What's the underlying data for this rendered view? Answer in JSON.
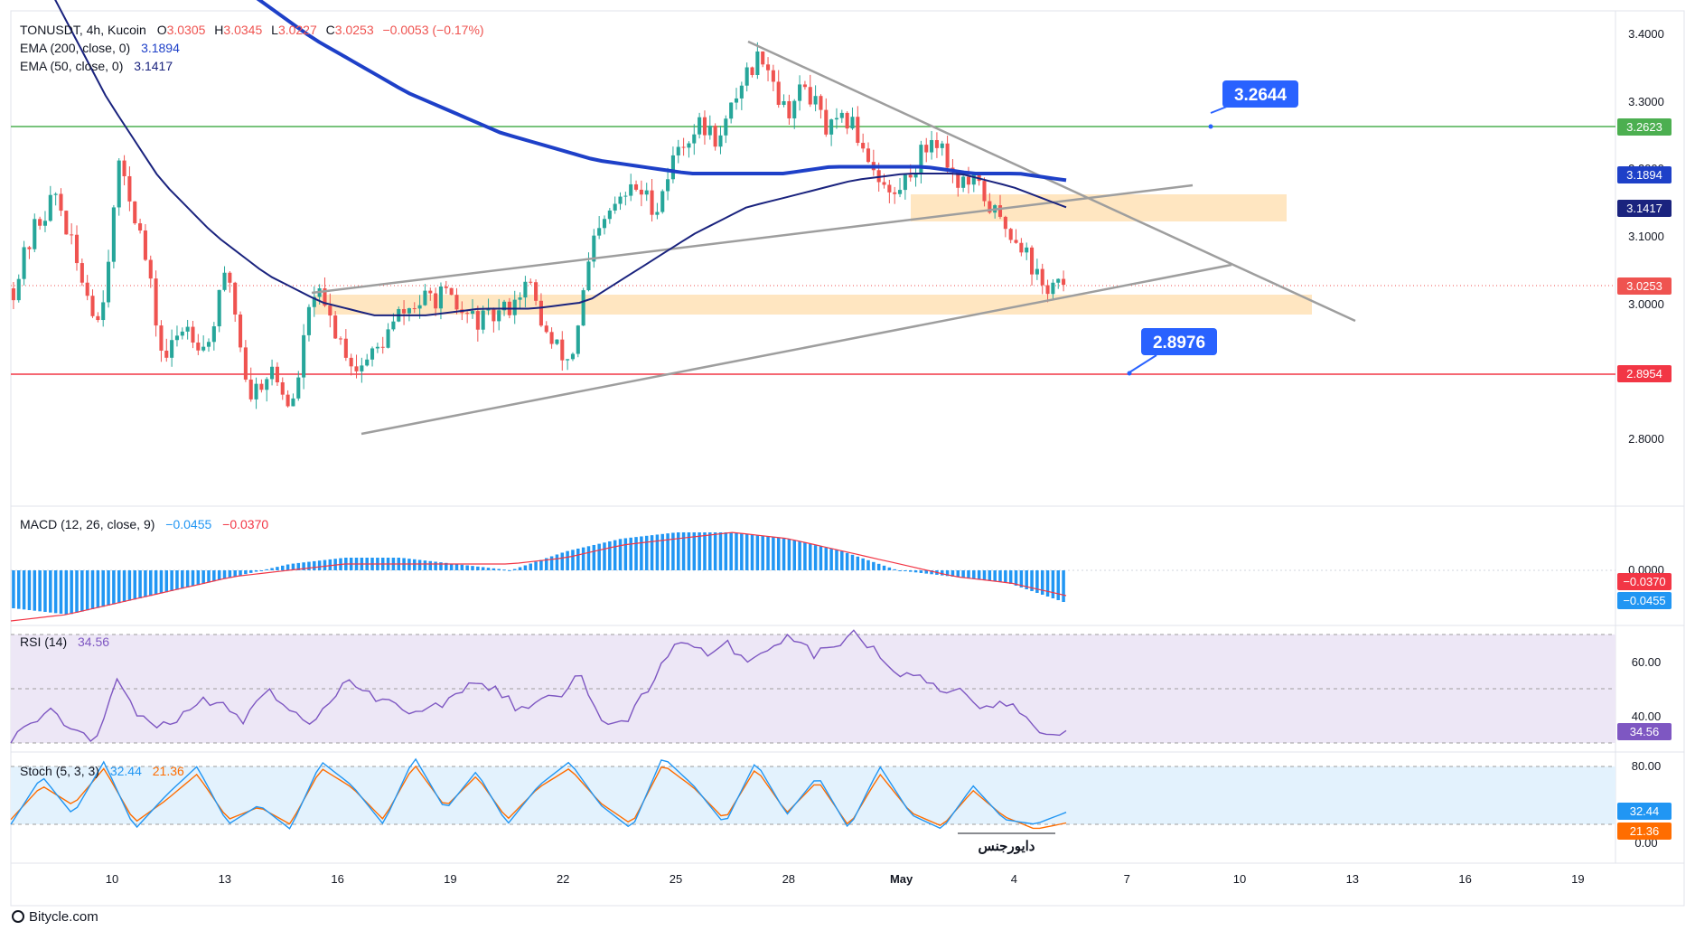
{
  "header": {
    "symbol_line": "TONUSDT, 4h, Kucoin",
    "ohlc": {
      "o_label": "O",
      "o": "3.0305",
      "h_label": "H",
      "h": "3.0345",
      "l_label": "L",
      "l": "3.0227",
      "c_label": "C",
      "c": "3.0253",
      "change": "−0.0053 (−0.17%)"
    },
    "ema200_label": "EMA (200, close, 0)",
    "ema200_value": "3.1894",
    "ema50_label": "EMA (50, close, 0)",
    "ema50_value": "3.1417"
  },
  "callouts": {
    "upper": "3.2644",
    "lower": "2.8976"
  },
  "price_axis": {
    "ticks": [
      "3.4000",
      "3.3000",
      "3.2000",
      "3.1000",
      "3.0000",
      "2.8000"
    ],
    "tags": {
      "resistance": "3.2623",
      "ema200": "3.1894",
      "ema50": "3.1417",
      "last": "3.0253",
      "support": "2.8954"
    }
  },
  "macd": {
    "label": "MACD (12, 26, close, 9)",
    "macd_value": "−0.0455",
    "signal_value": "−0.0370",
    "zero_tick": "0.0000",
    "tag_signal": "−0.0370",
    "tag_macd": "−0.0455"
  },
  "rsi": {
    "label": "RSI (14)",
    "value": "34.56",
    "ticks": [
      "60.00",
      "40.00"
    ],
    "tag": "34.56"
  },
  "stoch": {
    "label": "Stoch (5, 3, 3)",
    "k_value": "32.44",
    "d_value": "21.36",
    "ticks": [
      "80.00",
      "0.00"
    ],
    "tag_k": "32.44",
    "tag_d": "21.36",
    "annotation": "دایورجنس"
  },
  "time_axis": {
    "labels": [
      "10",
      "13",
      "16",
      "19",
      "22",
      "25",
      "28",
      "May",
      "4",
      "7",
      "10",
      "13",
      "16",
      "19"
    ]
  },
  "watermark": "Bitycle.com",
  "colors": {
    "up": "#26a69a",
    "down": "#ef5350",
    "ema200": "#1e40c8",
    "ema50": "#1a237e",
    "resistance": "#4caf50",
    "support": "#f23645",
    "callout": "#2962ff",
    "zone": "#ffe0b2",
    "trendline": "#9e9e9e",
    "rsi_line": "#7e57c2",
    "rsi_band": "#ede7f6",
    "stoch_k": "#2196f3",
    "stoch_d": "#ff6d00",
    "stoch_band": "#e3f2fd",
    "macd_hist": "#2196f3",
    "macd_signal": "#f23645"
  },
  "chart_data": [
    {
      "type": "candlestick",
      "ylim": [
        2.73,
        3.43
      ],
      "x_labels": [
        "10",
        "13",
        "16",
        "19",
        "22",
        "25",
        "28",
        "May",
        "4",
        "7",
        "10",
        "13",
        "16",
        "19"
      ],
      "close_path": [
        3.02,
        3.11,
        3.16,
        3.05,
        2.97,
        3.21,
        3.09,
        2.91,
        2.97,
        2.93,
        3.05,
        2.86,
        2.9,
        2.84,
        3.02,
        2.96,
        2.9,
        2.93,
        2.98,
        3.0,
        3.01,
        2.98,
        2.97,
        2.99,
        3.03,
        2.94,
        2.91,
        3.08,
        3.14,
        3.17,
        3.14,
        3.23,
        3.26,
        3.24,
        3.33,
        3.37,
        3.28,
        3.32,
        3.25,
        3.27,
        3.21,
        3.15,
        3.2,
        3.25,
        3.18,
        3.17,
        3.12,
        3.09,
        3.02,
        3.03
      ],
      "resistance": 3.2623,
      "support": 2.8954,
      "last_price": 3.0253,
      "ema200_path": [
        3.55,
        3.49,
        3.44,
        3.39,
        3.35,
        3.31,
        3.28,
        3.25,
        3.23,
        3.21,
        3.2,
        3.19,
        3.19,
        3.19,
        3.2,
        3.2,
        3.2,
        3.19,
        3.19,
        3.18
      ],
      "ema50_path": [
        3.45,
        3.3,
        3.18,
        3.1,
        3.04,
        3.0,
        2.98,
        2.98,
        2.99,
        2.99,
        3.0,
        3.05,
        3.1,
        3.14,
        3.16,
        3.18,
        3.19,
        3.19,
        3.17,
        3.14
      ],
      "zones": [
        [
          3.12,
          3.16
        ],
        [
          2.99,
          3.02
        ]
      ],
      "callouts": [
        3.2644,
        2.8976
      ]
    },
    {
      "type": "bar",
      "name": "MACD (12, 26, close, 9)",
      "histogram_path": [
        -0.06,
        -0.07,
        -0.05,
        -0.03,
        -0.01,
        0.01,
        0.02,
        0.02,
        0.01,
        0.0,
        0.03,
        0.05,
        0.06,
        0.06,
        0.05,
        0.03,
        0.0,
        -0.01,
        -0.02,
        -0.05
      ],
      "signal_path": [
        -0.08,
        -0.07,
        -0.05,
        -0.03,
        -0.01,
        0.0,
        0.01,
        0.01,
        0.01,
        0.01,
        0.02,
        0.04,
        0.05,
        0.06,
        0.05,
        0.03,
        0.01,
        -0.01,
        -0.02,
        -0.04
      ],
      "last_macd": -0.0455,
      "last_signal": -0.037
    },
    {
      "type": "line",
      "name": "RSI (14)",
      "ylim": [
        20,
        75
      ],
      "bands": [
        30,
        50,
        70
      ],
      "values": [
        30,
        38,
        42,
        35,
        30,
        52,
        40,
        36,
        40,
        45,
        44,
        37,
        50,
        43,
        38,
        42,
        55,
        48,
        45,
        40,
        44,
        46,
        52,
        49,
        43,
        45,
        47,
        55,
        40,
        36,
        48,
        62,
        68,
        62,
        66,
        60,
        67,
        70,
        63,
        66,
        71,
        63,
        55,
        57,
        49,
        50,
        43,
        46,
        40,
        32,
        34.56
      ],
      "last": 34.56
    },
    {
      "type": "line",
      "name": "Stoch (5, 3, 3)",
      "ylim": [
        -5,
        95
      ],
      "bands": [
        20,
        80
      ],
      "series": [
        {
          "values": [
            20,
            70,
            30,
            85,
            15,
            50,
            80,
            20,
            40,
            15,
            85,
            60,
            20,
            90,
            35,
            75,
            20,
            60,
            85,
            40,
            15,
            90,
            60,
            20,
            85,
            30,
            70,
            15,
            80,
            30,
            15,
            60,
            25,
            20,
            32.44
          ]
        },
        {
          "values": [
            25,
            60,
            40,
            78,
            22,
            45,
            72,
            25,
            38,
            20,
            78,
            58,
            25,
            82,
            38,
            70,
            25,
            58,
            78,
            42,
            20,
            82,
            58,
            25,
            78,
            32,
            65,
            18,
            72,
            32,
            18,
            55,
            28,
            15,
            21.36
          ]
        }
      ],
      "annotation": "دایورجنس"
    }
  ]
}
